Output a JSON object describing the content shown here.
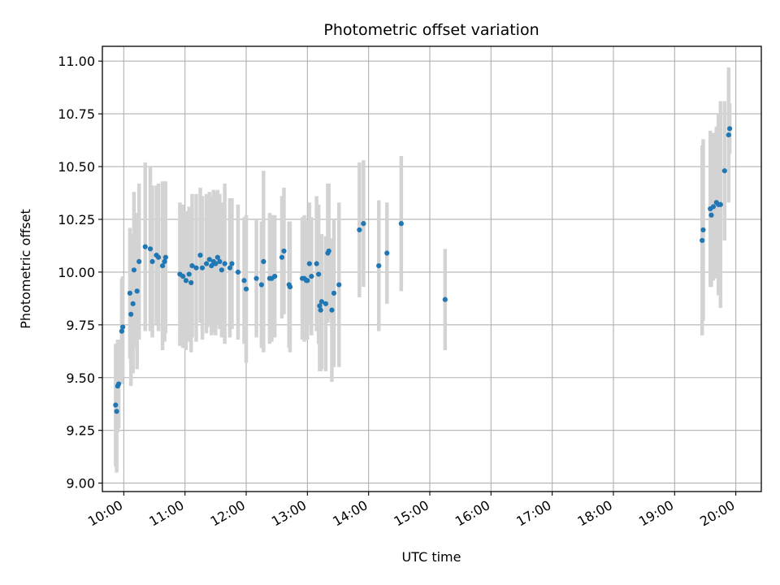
{
  "chart_data": {
    "type": "scatter",
    "title": "Photometric offset variation",
    "xlabel": "UTC time",
    "ylabel": "Photometric offset",
    "xlim": [
      "09:39",
      "20:25"
    ],
    "ylim": [
      8.96,
      11.07
    ],
    "grid": true,
    "x_ticks": [
      "10:00",
      "11:00",
      "12:00",
      "13:00",
      "14:00",
      "15:00",
      "16:00",
      "17:00",
      "18:00",
      "19:00",
      "20:00"
    ],
    "y_ticks": [
      9.0,
      9.25,
      9.5,
      9.75,
      10.0,
      10.25,
      10.5,
      10.75,
      11.0
    ],
    "y_tick_labels": [
      "9.00",
      "9.25",
      "9.50",
      "9.75",
      "10.00",
      "10.25",
      "10.50",
      "10.75",
      "11.00"
    ],
    "colors": {
      "points": "#1f77b4",
      "errorbars": "#d3d3d3",
      "grid": "#b0b0b0"
    },
    "series": [
      {
        "points": [
          [
            "09:52",
            9.37,
            0.29
          ],
          [
            "09:53",
            9.34,
            0.29
          ],
          [
            "09:54",
            9.46,
            0.22
          ],
          [
            "09:55",
            9.47,
            0.21
          ],
          [
            "09:58",
            9.72,
            0.25
          ],
          [
            "09:59",
            9.74,
            0.24
          ],
          [
            "10:06",
            9.9,
            0.31
          ],
          [
            "10:07",
            9.8,
            0.34
          ],
          [
            "10:09",
            9.85,
            0.33
          ],
          [
            "10:10",
            10.01,
            0.37
          ],
          [
            "10:13",
            9.91,
            0.37
          ],
          [
            "10:15",
            10.05,
            0.37
          ],
          [
            "10:21",
            10.12,
            0.4
          ],
          [
            "10:26",
            10.11,
            0.39
          ],
          [
            "10:28",
            10.05,
            0.36
          ],
          [
            "10:32",
            10.08,
            0.33
          ],
          [
            "10:34",
            10.07,
            0.35
          ],
          [
            "10:38",
            10.03,
            0.4
          ],
          [
            "10:40",
            10.05,
            0.38
          ],
          [
            "10:41",
            10.07,
            0.36
          ],
          [
            "10:55",
            9.99,
            0.34
          ],
          [
            "10:58",
            9.98,
            0.34
          ],
          [
            "11:01",
            9.96,
            0.33
          ],
          [
            "11:04",
            9.99,
            0.32
          ],
          [
            "11:06",
            9.95,
            0.33
          ],
          [
            "11:07",
            10.03,
            0.34
          ],
          [
            "11:11",
            10.02,
            0.35
          ],
          [
            "11:15",
            10.08,
            0.32
          ],
          [
            "11:17",
            10.02,
            0.34
          ],
          [
            "11:21",
            10.04,
            0.33
          ],
          [
            "11:24",
            10.06,
            0.32
          ],
          [
            "11:26",
            10.03,
            0.33
          ],
          [
            "11:28",
            10.05,
            0.34
          ],
          [
            "11:30",
            10.04,
            0.34
          ],
          [
            "11:32",
            10.07,
            0.32
          ],
          [
            "11:34",
            10.05,
            0.32
          ],
          [
            "11:36",
            10.01,
            0.32
          ],
          [
            "11:39",
            10.04,
            0.38
          ],
          [
            "11:44",
            10.02,
            0.33
          ],
          [
            "11:46",
            10.04,
            0.31
          ],
          [
            "11:52",
            10.0,
            0.32
          ],
          [
            "11:58",
            9.96,
            0.3
          ],
          [
            "12:00",
            9.92,
            0.35
          ],
          [
            "12:10",
            9.97,
            0.28
          ],
          [
            "12:15",
            9.94,
            0.3
          ],
          [
            "12:17",
            10.05,
            0.43
          ],
          [
            "12:23",
            9.97,
            0.31
          ],
          [
            "12:25",
            9.97,
            0.3
          ],
          [
            "12:28",
            9.98,
            0.29
          ],
          [
            "12:35",
            10.07,
            0.29
          ],
          [
            "12:37",
            10.1,
            0.3
          ],
          [
            "12:42",
            9.94,
            0.3
          ],
          [
            "12:43",
            9.93,
            0.31
          ],
          [
            "12:55",
            9.97,
            0.29
          ],
          [
            "12:57",
            9.97,
            0.3
          ],
          [
            "12:59",
            9.96,
            0.28
          ],
          [
            "13:00",
            9.96,
            0.28
          ],
          [
            "13:02",
            10.04,
            0.29
          ],
          [
            "13:04",
            9.98,
            0.28
          ],
          [
            "13:09",
            10.04,
            0.32
          ],
          [
            "13:11",
            9.99,
            0.33
          ],
          [
            "13:12",
            9.84,
            0.31
          ],
          [
            "13:13",
            9.82,
            0.29
          ],
          [
            "13:14",
            9.86,
            0.32
          ],
          [
            "13:18",
            9.85,
            0.32
          ],
          [
            "13:20",
            10.09,
            0.33
          ],
          [
            "13:21",
            10.1,
            0.32
          ],
          [
            "13:24",
            9.82,
            0.34
          ],
          [
            "13:26",
            9.9,
            0.35
          ],
          [
            "13:31",
            9.94,
            0.39
          ],
          [
            "13:51",
            10.2,
            0.32
          ],
          [
            "13:55",
            10.23,
            0.3
          ],
          [
            "14:10",
            10.03,
            0.31
          ],
          [
            "14:18",
            10.09,
            0.24
          ],
          [
            "14:32",
            10.23,
            0.32
          ],
          [
            "15:15",
            9.87,
            0.24
          ],
          [
            "19:27",
            10.15,
            0.45
          ],
          [
            "19:28",
            10.2,
            0.43
          ],
          [
            "19:35",
            10.3,
            0.37
          ],
          [
            "19:36",
            10.27,
            0.34
          ],
          [
            "19:38",
            10.31,
            0.35
          ],
          [
            "19:41",
            10.33,
            0.36
          ],
          [
            "19:43",
            10.32,
            0.43
          ],
          [
            "19:45",
            10.32,
            0.49
          ],
          [
            "19:49",
            10.48,
            0.33
          ],
          [
            "19:53",
            10.65,
            0.32
          ],
          [
            "19:54",
            10.68,
            0.12
          ]
        ]
      }
    ]
  }
}
